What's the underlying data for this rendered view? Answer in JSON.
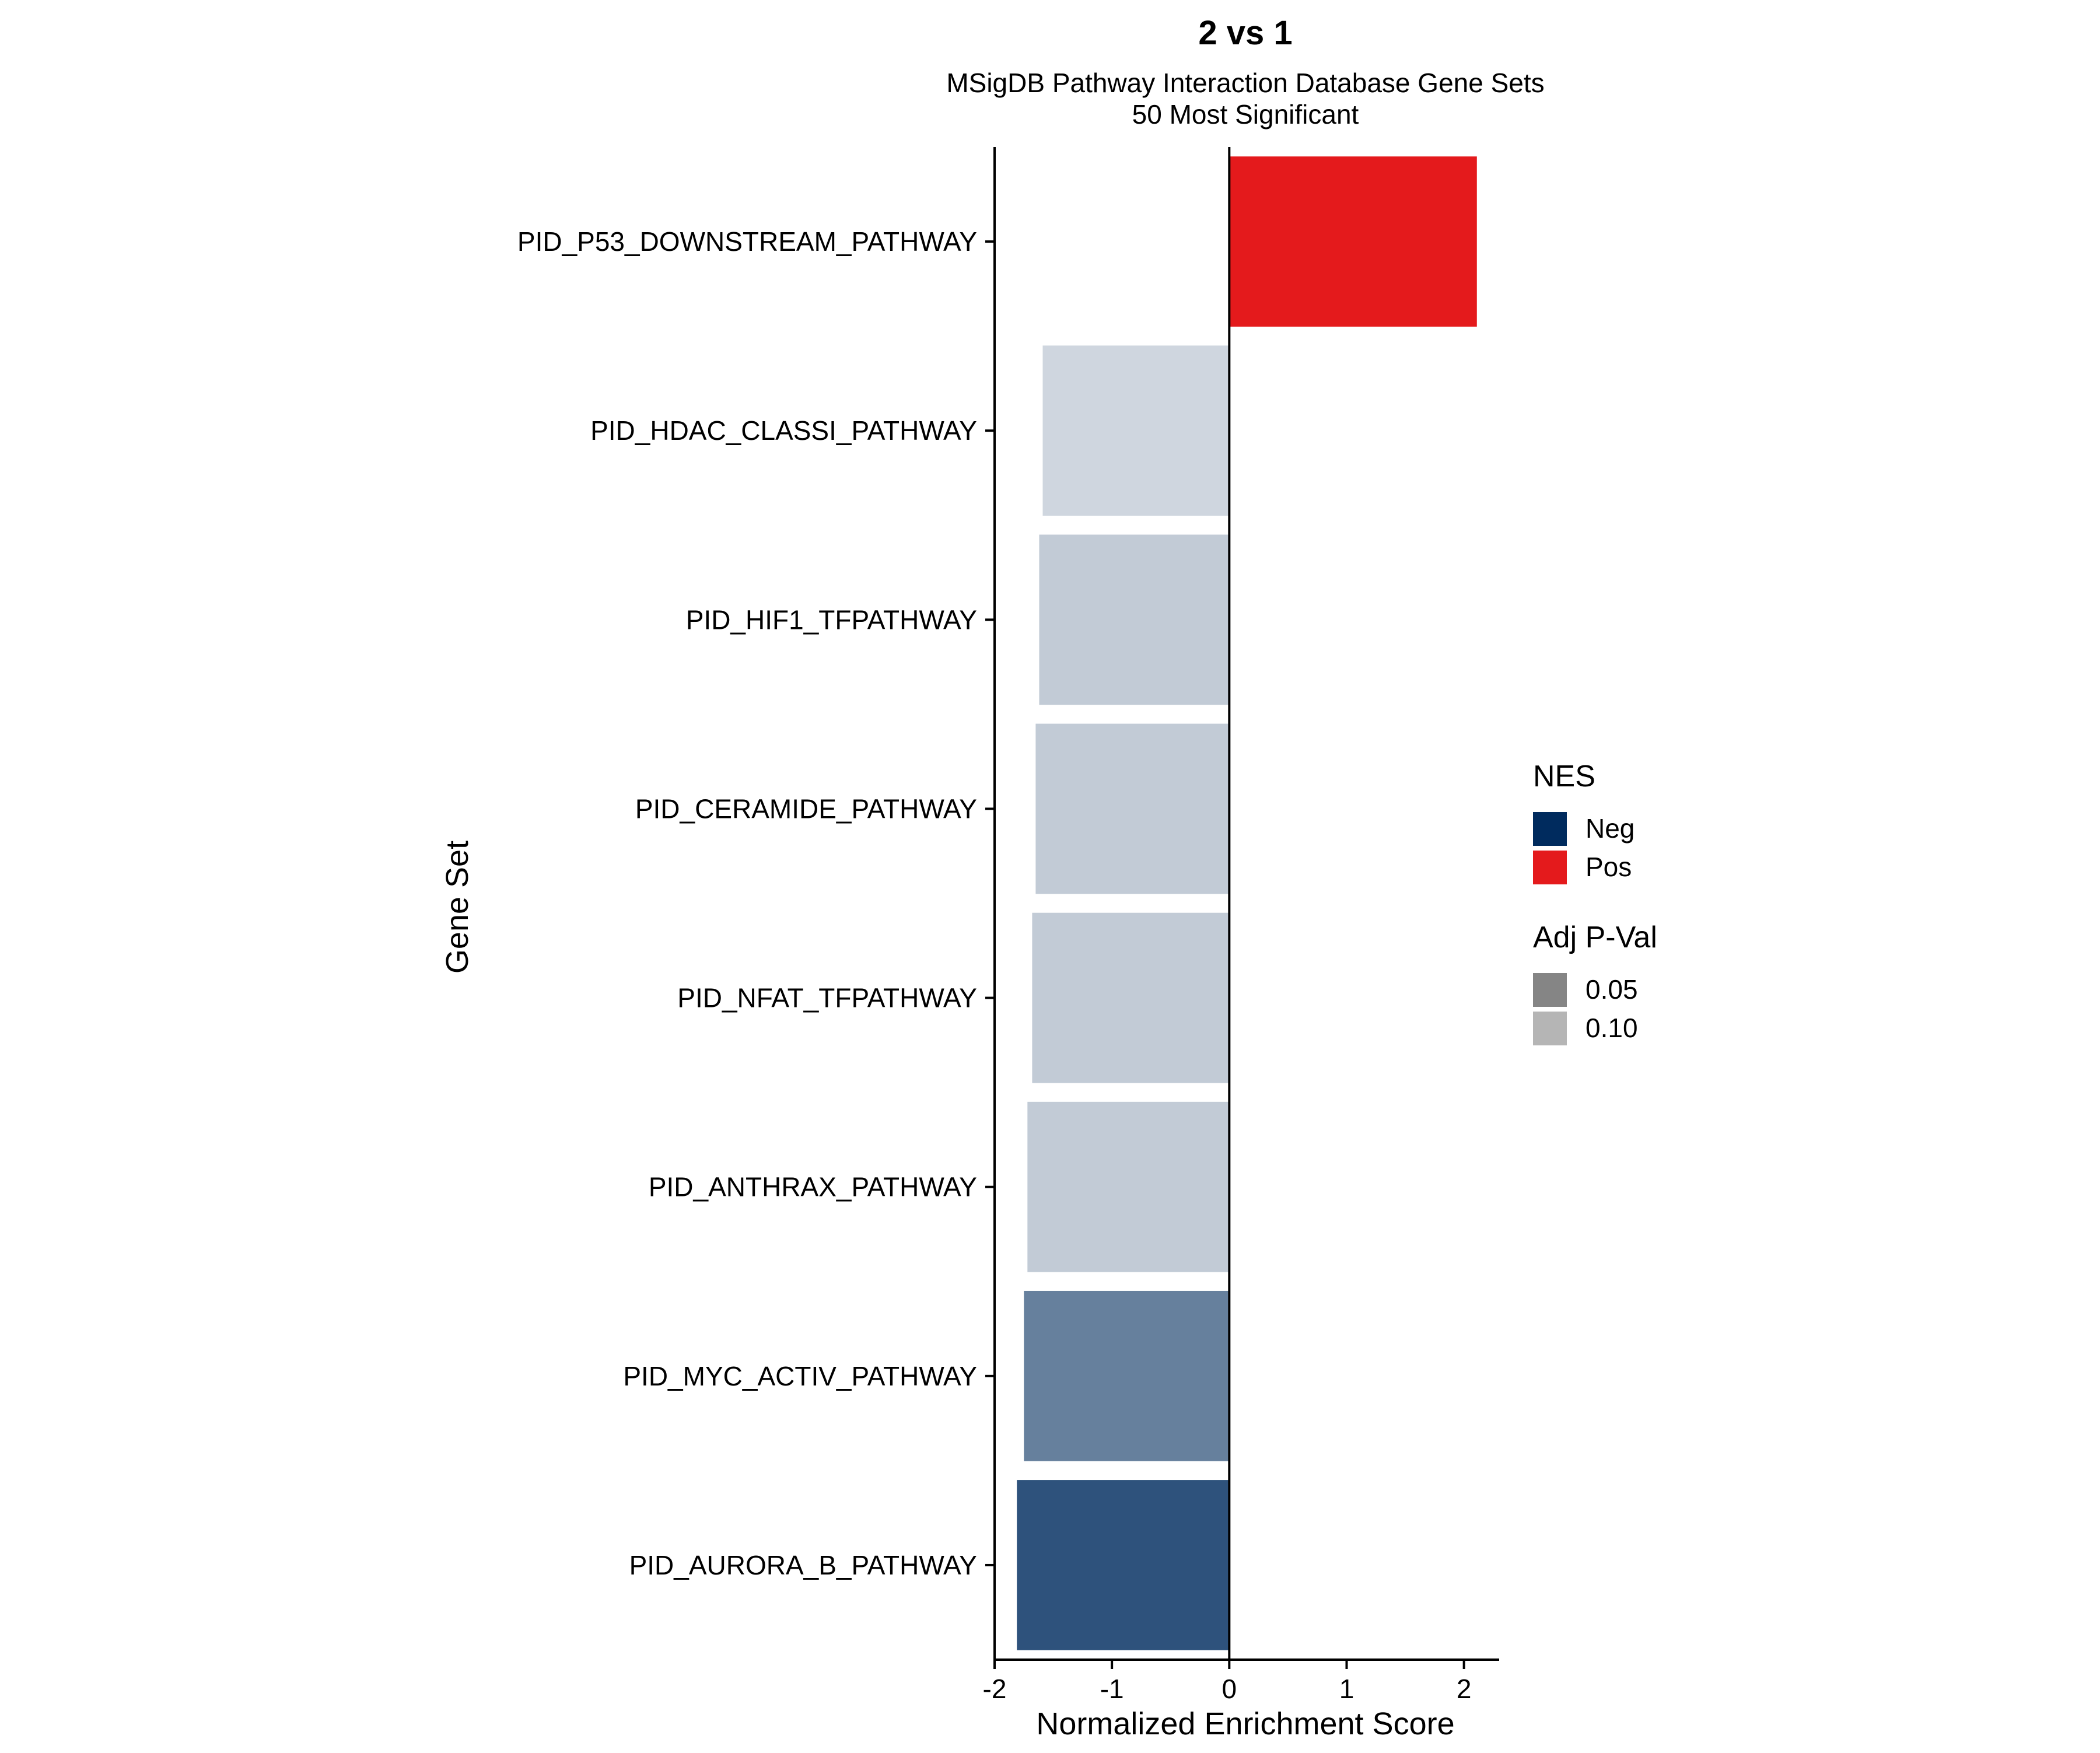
{
  "chart_data": {
    "type": "bar",
    "orientation": "horizontal",
    "title": "2 vs 1",
    "subtitle_lines": [
      "MSigDB Pathway Interaction Database Gene Sets",
      "50 Most Significant"
    ],
    "xlabel": "Normalized Enrichment Score",
    "ylabel": "Gene Set",
    "xlim": [
      -2.0,
      2.3
    ],
    "xticks": [
      -2,
      -1,
      0,
      1,
      2
    ],
    "xtick_labels": [
      "-2",
      "-1",
      "0",
      "1",
      "2"
    ],
    "grid": false,
    "legend_placement": "right",
    "categories": [
      "PID_P53_DOWNSTREAM_PATHWAY",
      "PID_HDAC_CLASSI_PATHWAY",
      "PID_HIF1_TFPATHWAY",
      "PID_CERAMIDE_PATHWAY",
      "PID_NFAT_TFPATHWAY",
      "PID_ANTHRAX_PATHWAY",
      "PID_MYC_ACTIV_PATHWAY",
      "PID_AURORA_B_PATHWAY"
    ],
    "values": [
      2.11,
      -1.59,
      -1.62,
      -1.65,
      -1.68,
      -1.72,
      -1.75,
      -1.81
    ],
    "bar_colors": [
      "#E41A1C",
      "#CFD6DF",
      "#C2CBD6",
      "#C2CBD6",
      "#C2CBD6",
      "#C2CBD6",
      "#66809D",
      "#2E527C"
    ],
    "legends": [
      {
        "title": "NES",
        "items": [
          {
            "label": "Neg",
            "color": "#002B5E"
          },
          {
            "label": "Pos",
            "color": "#E41A1C"
          }
        ]
      },
      {
        "title": "Adj P-Val",
        "items": [
          {
            "label": "0.05",
            "color": "#858585"
          },
          {
            "label": "0.10",
            "color": "#B5B5B5"
          }
        ]
      }
    ]
  }
}
